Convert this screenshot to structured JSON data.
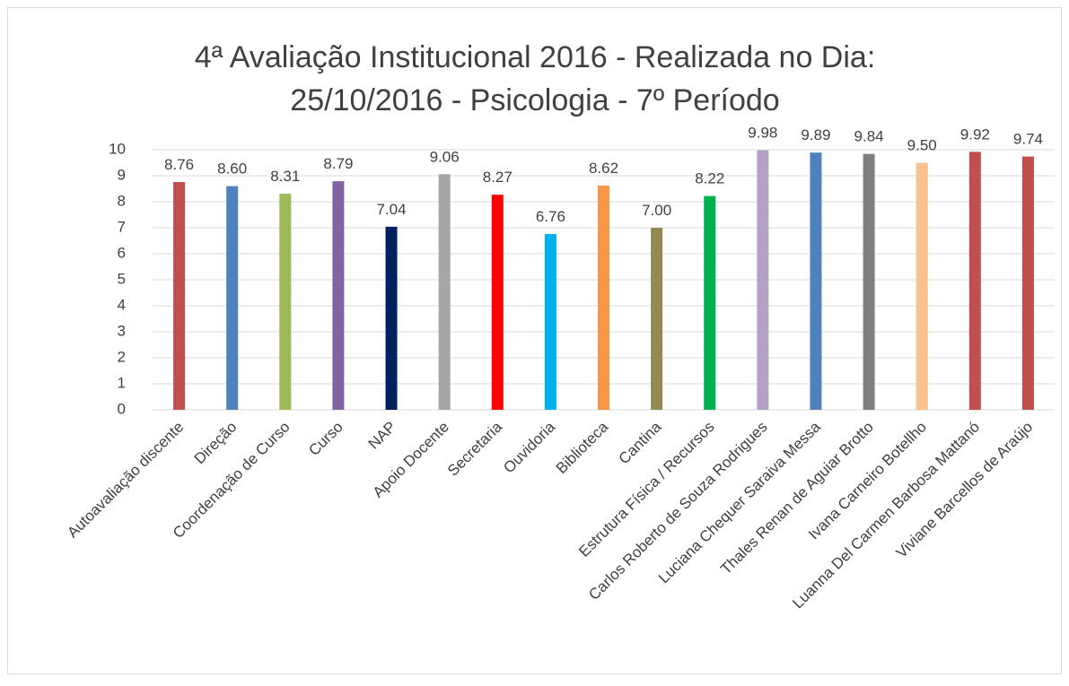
{
  "chart_data": {
    "type": "bar",
    "title": [
      "4ª Avaliação Institucional 2016 - Realizada no Dia:",
      "25/10/2016 - Psicologia - 7º Período"
    ],
    "categories": [
      "Autoavaliação discente",
      "Direção",
      "Coordenação de Curso",
      "Curso",
      "NAP",
      "Apoio Docente",
      "Secretaria",
      "Ouvidoria",
      "Biblioteca",
      "Cantina",
      "Estrutura Física / Recursos",
      "Carlos Roberto de Souza Rodrigues",
      "Luciana Chequer Saraiva Messa",
      "Thales Renan de Aguiar Brotto",
      "Ivana Carneiro Botellho",
      "Luanna Del Carmen Barbosa Mattanó",
      "Viviane Barcellos de Araújo"
    ],
    "values": [
      8.76,
      8.6,
      8.31,
      8.79,
      7.04,
      9.06,
      8.27,
      6.76,
      8.62,
      7.0,
      8.22,
      9.98,
      9.89,
      9.84,
      9.5,
      9.92,
      9.74
    ],
    "value_labels": [
      "8.76",
      "8.60",
      "8.31",
      "8.79",
      "7.04",
      "9.06",
      "8.27",
      "6.76",
      "8.62",
      "7.00",
      "8.22",
      "9.98",
      "9.89",
      "9.84",
      "9.50",
      "9.92",
      "9.74"
    ],
    "colors": [
      "#c0504d",
      "#4f81bd",
      "#9bbb59",
      "#8064a2",
      "#002060",
      "#a5a5a5",
      "#ff0000",
      "#00b0f0",
      "#f79646",
      "#938953",
      "#00b050",
      "#b3a2c7",
      "#4f81bd",
      "#7f7f7f",
      "#fac090",
      "#c0504d",
      "#c0504d"
    ],
    "ylim": [
      0,
      10
    ],
    "yticks": [
      0,
      1,
      2,
      3,
      4,
      5,
      6,
      7,
      8,
      9,
      10
    ],
    "grid": true
  }
}
